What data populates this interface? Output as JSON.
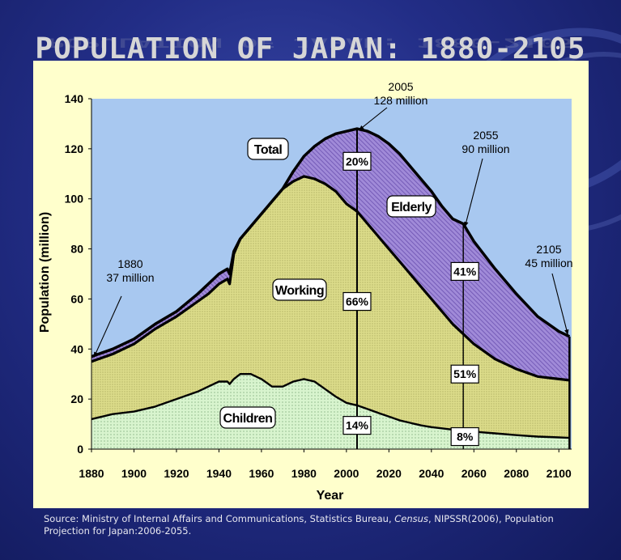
{
  "title": "POPULATION OF JAPAN: 1880-2105",
  "chart_data": {
    "type": "area",
    "title": "POPULATION OF JAPAN: 1880-2105",
    "xlabel": "Year",
    "ylabel": "Population (million)",
    "xlim": [
      1880,
      2106
    ],
    "ylim": [
      0,
      140
    ],
    "xticks": [
      "1880",
      "1900",
      "1920",
      "1940",
      "1960",
      "1980",
      "2000",
      "2020",
      "2040",
      "2060",
      "2080",
      "2100"
    ],
    "yticks": [
      "0",
      "20",
      "40",
      "60",
      "80",
      "100",
      "120",
      "140"
    ],
    "grid": false,
    "x": [
      1880,
      1890,
      1900,
      1910,
      1920,
      1930,
      1935,
      1940,
      1944,
      1945,
      1947,
      1950,
      1955,
      1960,
      1965,
      1970,
      1975,
      1980,
      1985,
      1990,
      1995,
      2000,
      2005,
      2010,
      2015,
      2020,
      2025,
      2030,
      2035,
      2040,
      2045,
      2050,
      2055,
      2060,
      2070,
      2080,
      2090,
      2100,
      2105
    ],
    "series": [
      {
        "name": "Children",
        "values": [
          12,
          14,
          15,
          17,
          20,
          23,
          25,
          27,
          27,
          26,
          28,
          30,
          30,
          28,
          25,
          25,
          27,
          28,
          27,
          24,
          21,
          18.5,
          17.5,
          16,
          14.5,
          13,
          11.5,
          10.5,
          9.5,
          8.8,
          8.3,
          7.8,
          7.4,
          7,
          6.3,
          5.6,
          5,
          4.7,
          4.5
        ]
      },
      {
        "name": "Working",
        "values": [
          35,
          38,
          42,
          48,
          53,
          59,
          62,
          66,
          68,
          66,
          78,
          84,
          89,
          94,
          99,
          104,
          107,
          109,
          108,
          106,
          103,
          98,
          95,
          90,
          85,
          80,
          75,
          70,
          65,
          60,
          55,
          50,
          46,
          42,
          36,
          32,
          29,
          28,
          27.5
        ]
      },
      {
        "name": "Total",
        "values": [
          37,
          40,
          44,
          50,
          55,
          62,
          66,
          70,
          72,
          70,
          79,
          84,
          89,
          94,
          99,
          104,
          111,
          117,
          121,
          124,
          126,
          127,
          128,
          127,
          125,
          122,
          118,
          113,
          108,
          103,
          97,
          92,
          90,
          83,
          72,
          62,
          53,
          47,
          45
        ]
      }
    ],
    "areas": [
      "Children",
      "Working",
      "Elderly"
    ],
    "area_labels": {
      "total": "Total",
      "elderly": "Elderly",
      "working": "Working",
      "children": "Children"
    },
    "shares_2005": {
      "elderly": "20%",
      "working": "66%",
      "children": "14%"
    },
    "shares_2055": {
      "elderly": "41%",
      "working": "51%",
      "children": "8%"
    },
    "annotations": [
      {
        "year": "1880",
        "value": "37 million"
      },
      {
        "year": "2005",
        "value": "128 million"
      },
      {
        "year": "2055",
        "value": "90 million"
      },
      {
        "year": "2105",
        "value": "45 million"
      }
    ],
    "colors": {
      "children": "#d6f2cc",
      "working": "#dcdc8c",
      "elderly": "#9a86d8",
      "plot_bg": "#a8c8f0",
      "panel_bg": "#ffffcc"
    }
  },
  "source": {
    "prefix": "Source: Ministry of Internal Affairs and Communications, Statistics Bureau, ",
    "italic": "Census",
    "suffix": ", NIPSSR(2006), Population Projection for Japan:2006-2055."
  }
}
